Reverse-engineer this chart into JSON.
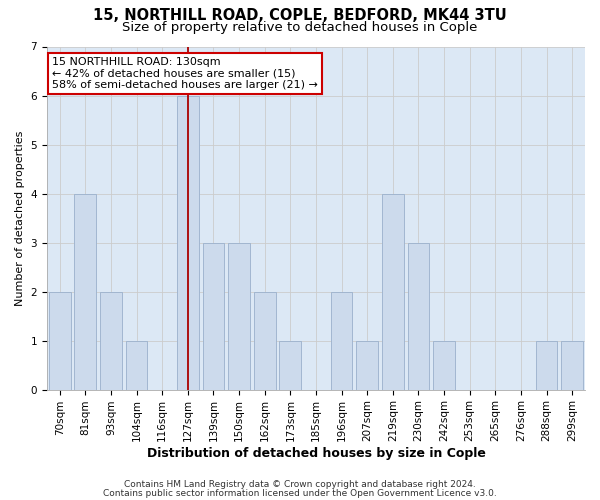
{
  "title1": "15, NORTHILL ROAD, COPLE, BEDFORD, MK44 3TU",
  "title2": "Size of property relative to detached houses in Cople",
  "xlabel": "Distribution of detached houses by size in Cople",
  "ylabel": "Number of detached properties",
  "categories": [
    "70sqm",
    "81sqm",
    "93sqm",
    "104sqm",
    "116sqm",
    "127sqm",
    "139sqm",
    "150sqm",
    "162sqm",
    "173sqm",
    "185sqm",
    "196sqm",
    "207sqm",
    "219sqm",
    "230sqm",
    "242sqm",
    "253sqm",
    "265sqm",
    "276sqm",
    "288sqm",
    "299sqm"
  ],
  "values": [
    2,
    4,
    2,
    1,
    0,
    6,
    3,
    3,
    2,
    1,
    0,
    2,
    1,
    4,
    3,
    1,
    0,
    0,
    0,
    1,
    1
  ],
  "highlight_index": 5,
  "bar_color": "#ccdaec",
  "bar_edge_color": "#9ab0cc",
  "highlight_line_color": "#aa0000",
  "annotation_line1": "15 NORTHHILL ROAD: 130sqm",
  "annotation_line2": "← 42% of detached houses are smaller (15)",
  "annotation_line3": "58% of semi-detached houses are larger (21) →",
  "annotation_box_facecolor": "#ffffff",
  "annotation_box_edgecolor": "#cc0000",
  "ylim": [
    0,
    7
  ],
  "yticks": [
    0,
    1,
    2,
    3,
    4,
    5,
    6,
    7
  ],
  "grid_color": "#cccccc",
  "bg_color": "#dce8f5",
  "footnote1": "Contains HM Land Registry data © Crown copyright and database right 2024.",
  "footnote2": "Contains public sector information licensed under the Open Government Licence v3.0.",
  "title1_fontsize": 10.5,
  "title2_fontsize": 9.5,
  "xlabel_fontsize": 9,
  "ylabel_fontsize": 8,
  "tick_fontsize": 7.5,
  "annot_fontsize": 8,
  "footnote_fontsize": 6.5
}
